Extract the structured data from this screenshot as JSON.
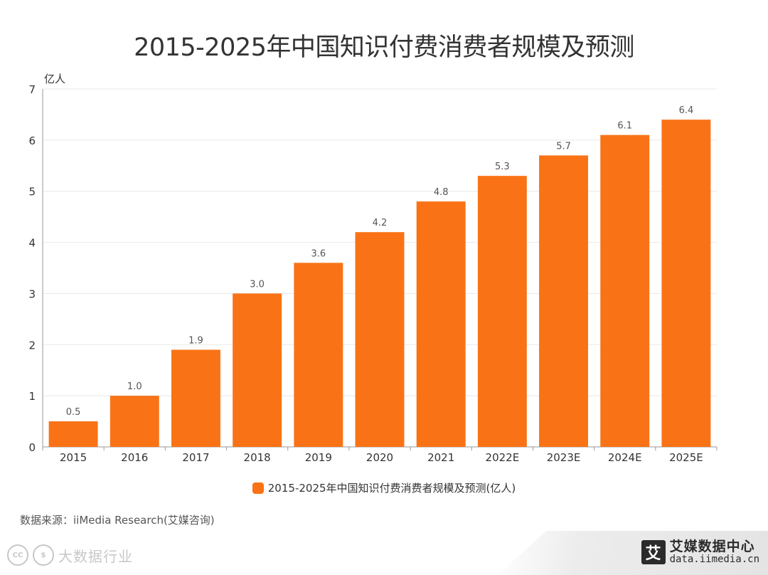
{
  "colors": {
    "bar": "#F97316",
    "grid": "#e8e8e8",
    "axis": "#999999",
    "text": "#333333"
  },
  "chart_data": {
    "type": "bar",
    "title": "2015-2025年中国知识付费消费者规模及预测",
    "ylabel": "亿人",
    "xlabel": "",
    "categories": [
      "2015",
      "2016",
      "2017",
      "2018",
      "2019",
      "2020",
      "2021",
      "2022E",
      "2023E",
      "2024E",
      "2025E"
    ],
    "series": [
      {
        "name": "2015-2025年中国知识付费消费者规模及预测(亿人)",
        "values": [
          0.5,
          1.0,
          1.9,
          3.0,
          3.6,
          4.2,
          4.8,
          5.3,
          5.7,
          6.1,
          6.4
        ],
        "value_labels": [
          "0.5",
          "1.0",
          "1.9",
          "3.0",
          "3.6",
          "4.2",
          "4.8",
          "5.3",
          "5.7",
          "6.1",
          "6.4"
        ]
      }
    ],
    "ylim": [
      0,
      7
    ],
    "yticks": [
      "0",
      "1",
      "2",
      "3",
      "4",
      "5",
      "6",
      "7"
    ],
    "grid": true,
    "legend_position": "bottom-center"
  },
  "footer": {
    "source": "数据来源：iiMedia Research(艾媒咨询)",
    "logo_mark": "艾",
    "logo_name": "艾媒数据中心",
    "logo_url": "data.iimedia.cn"
  },
  "watermark": {
    "badge_1": "CC",
    "badge_2": "$",
    "text": "大数据行业"
  }
}
